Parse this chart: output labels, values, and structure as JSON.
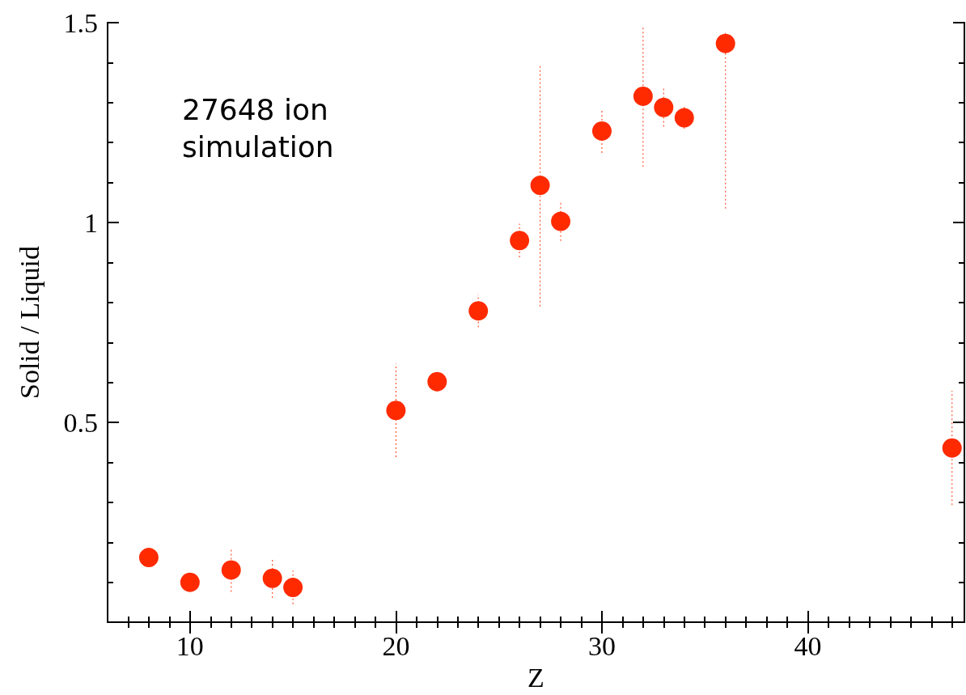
{
  "chart_data": {
    "type": "scatter",
    "xlabel": "Z",
    "ylabel": "Solid / Liquid",
    "annotations": [
      "27648 ion\nsimulation"
    ],
    "x": [
      8,
      10,
      12,
      14,
      15,
      20,
      22,
      24,
      26,
      27,
      28,
      30,
      32,
      33,
      34,
      36,
      47
    ],
    "values": [
      0.162,
      0.1,
      0.131,
      0.11,
      0.087,
      0.53,
      0.602,
      0.779,
      0.955,
      1.093,
      1.003,
      1.229,
      1.316,
      1.288,
      1.262,
      1.448,
      0.436
    ],
    "errors": [
      null,
      null,
      0.055,
      0.049,
      0.042,
      0.117,
      0.025,
      0.041,
      0.042,
      0.303,
      0.049,
      0.055,
      0.177,
      0.048,
      0.027,
      [
        1.035,
        1.476
      ],
      0.143
    ],
    "color": "#ff2a00",
    "marker": "circle",
    "grid": false,
    "xlim": [
      6,
      47.6
    ],
    "ylim": [
      0,
      1.5
    ],
    "xticks": [
      {
        "value": 7,
        "label": null
      },
      {
        "value": 8,
        "label": null
      },
      {
        "value": 9,
        "label": null
      },
      10,
      {
        "value": 11,
        "label": null
      },
      {
        "value": 12,
        "label": null
      },
      {
        "value": 13,
        "label": null
      },
      {
        "value": 14,
        "label": null
      },
      {
        "value": 15,
        "label": null
      },
      {
        "value": 16,
        "label": null
      },
      {
        "value": 17,
        "label": null
      },
      {
        "value": 18,
        "label": null
      },
      {
        "value": 19,
        "label": null
      },
      20,
      {
        "value": 21,
        "label": null
      },
      {
        "value": 22,
        "label": null
      },
      {
        "value": 23,
        "label": null
      },
      {
        "value": 24,
        "label": null
      },
      {
        "value": 25,
        "label": null
      },
      {
        "value": 26,
        "label": null
      },
      {
        "value": 27,
        "label": null
      },
      {
        "value": 28,
        "label": null
      },
      {
        "value": 29,
        "label": null
      },
      30,
      {
        "value": 31,
        "label": null
      },
      {
        "value": 32,
        "label": null
      },
      {
        "value": 33,
        "label": null
      },
      {
        "value": 34,
        "label": null
      },
      {
        "value": 35,
        "label": null
      },
      {
        "value": 36,
        "label": null
      },
      {
        "value": 37,
        "label": null
      },
      {
        "value": 38,
        "label": null
      },
      {
        "value": 39,
        "label": null
      },
      40,
      {
        "value": 41,
        "label": null
      },
      {
        "value": 42,
        "label": null
      },
      {
        "value": 43,
        "label": null
      },
      {
        "value": 44,
        "label": null
      },
      {
        "value": 45,
        "label": null
      },
      {
        "value": 46,
        "label": null
      },
      {
        "value": 47,
        "label": null
      }
    ],
    "yticks": [
      {
        "value": 0.1,
        "label": null
      },
      {
        "value": 0.2,
        "label": null
      },
      {
        "value": 0.3,
        "label": null
      },
      {
        "value": 0.4,
        "label": null
      },
      0.5,
      {
        "value": 0.6,
        "label": null
      },
      {
        "value": 0.7,
        "label": null
      },
      {
        "value": 0.8,
        "label": null
      },
      {
        "value": 0.9,
        "label": null
      },
      1,
      {
        "value": 1.1,
        "label": null
      },
      {
        "value": 1.2,
        "label": null
      },
      {
        "value": 1.3,
        "label": null
      },
      {
        "value": 1.4,
        "label": null
      },
      1.5
    ]
  }
}
